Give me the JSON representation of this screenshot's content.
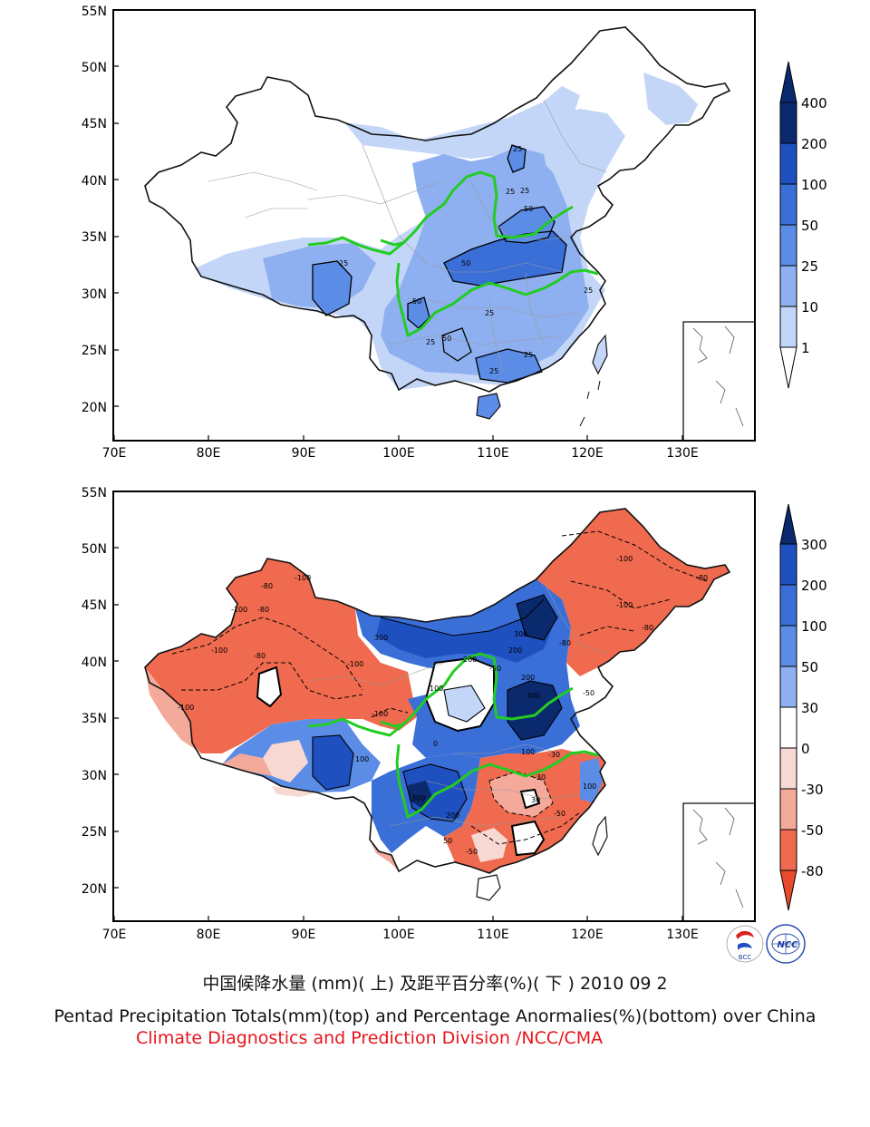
{
  "top_map": {
    "lat_labels": [
      "55N",
      "50N",
      "45N",
      "40N",
      "35N",
      "30N",
      "25N",
      "20N"
    ],
    "lon_labels": [
      "70E",
      "80E",
      "90E",
      "100E",
      "110E",
      "120E",
      "130E"
    ],
    "contour_labels": [
      "25",
      "25",
      "50",
      "50",
      "25",
      "50",
      "25",
      "25",
      "50",
      "25",
      "25",
      "25",
      "25"
    ],
    "colorbar": {
      "labels": [
        "400",
        "200",
        "100",
        "50",
        "25",
        "10",
        "1"
      ],
      "colors": [
        "#0b2a6e",
        "#1f50c0",
        "#3a6fd8",
        "#5b8ce6",
        "#8fb0f0",
        "#c4d6f8",
        "#ffffff"
      ]
    }
  },
  "bottom_map": {
    "lat_labels": [
      "55N",
      "50N",
      "45N",
      "40N",
      "35N",
      "30N",
      "25N",
      "20N"
    ],
    "lon_labels": [
      "70E",
      "80E",
      "90E",
      "100E",
      "110E",
      "120E",
      "130E"
    ],
    "contour_labels": [
      "-100",
      "-80",
      "-100",
      "-80",
      "-100",
      "-80",
      "-100",
      "-100",
      "300",
      "200",
      "100",
      "300",
      "200",
      "-100",
      "100",
      "200",
      "300",
      "-50",
      "-30",
      "0",
      "100",
      "300",
      "200",
      "50",
      "-30",
      "-50",
      "-80",
      "-100",
      "-100",
      "-80",
      "-80",
      "-50",
      "30",
      "-50",
      "100"
    ],
    "colorbar": {
      "labels": [
        "300",
        "200",
        "100",
        "50",
        "30",
        "0",
        "-30",
        "-50",
        "-80"
      ],
      "colors": [
        "#0b2a6e",
        "#1f50c0",
        "#3a6fd8",
        "#5b8ce6",
        "#8fb0f0",
        "#ffffff",
        "#f7d8d2",
        "#f3aa9a",
        "#ef6a4e",
        "#e94a2c"
      ]
    }
  },
  "logos": {
    "bcc": "BCC",
    "ncc": "NCC"
  },
  "captions": {
    "chinese": "中国候降水量 (mm)( 上) 及距平百分率(%)( 下 ) 2010 09 2",
    "english": "Pentad Precipitation Totals(mm)(top) and Percentage Anormalies(%)(bottom) over China",
    "credit": "Climate Diagnostics and Prediction Division /NCC/CMA"
  }
}
